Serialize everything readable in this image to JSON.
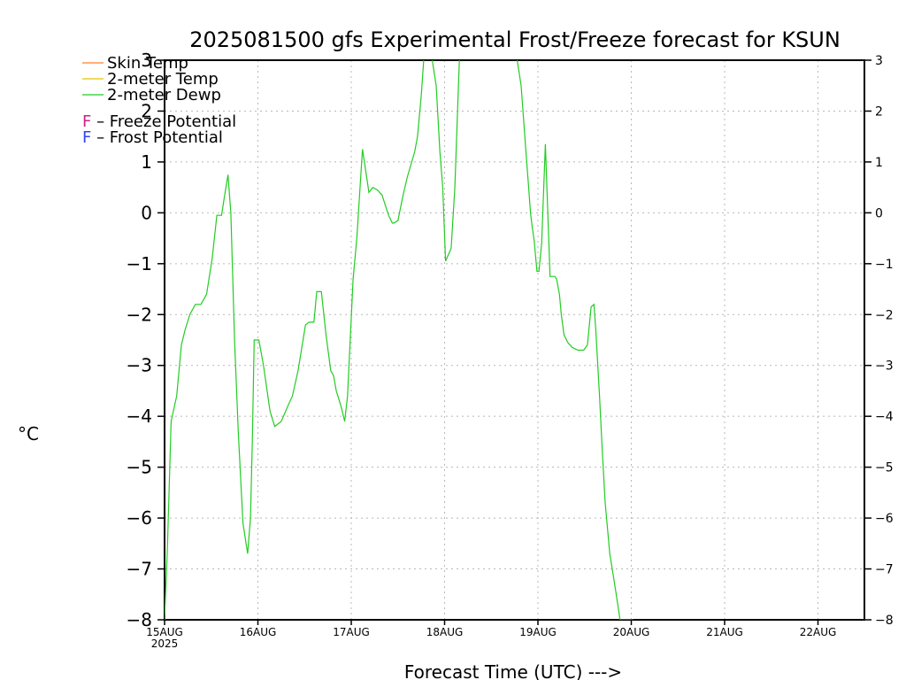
{
  "chart_data": {
    "type": "line",
    "title": "2025081500 gfs Experimental Frost/Freeze forecast for KSUN",
    "xlabel": "Forecast Time (UTC) --->",
    "ylabel": "°C",
    "ylim": [
      -8,
      3
    ],
    "yticks": [
      -8,
      -7,
      -6,
      -5,
      -4,
      -3,
      -2,
      -1,
      0,
      1,
      2,
      3
    ],
    "xticks": [
      "15AUG",
      "16AUG",
      "17AUG",
      "18AUG",
      "19AUG",
      "20AUG",
      "21AUG",
      "22AUG"
    ],
    "xtick_year": "2025",
    "grid": true,
    "legend_position": "top-left",
    "legend": [
      {
        "label": "Skin Temp",
        "color": "#ff7f27"
      },
      {
        "label": "2-meter Temp",
        "color": "#e6c300"
      },
      {
        "label": "2-meter Dewp",
        "color": "#22cc22"
      }
    ],
    "potential_legend": [
      {
        "marker": "F",
        "label": " – Freeze Potential",
        "color": "#cc2288"
      },
      {
        "marker": "F",
        "label": " – Frost Potential",
        "color": "#3344ee"
      }
    ],
    "series": [
      {
        "name": "2-meter Dewp",
        "color": "#22cc22",
        "x": [
          0.0,
          0.03,
          0.07,
          0.13,
          0.18,
          0.22,
          0.27,
          0.33,
          0.39,
          0.45,
          0.51,
          0.56,
          0.61,
          0.64,
          0.68,
          0.71,
          0.75,
          0.79,
          0.84,
          0.89,
          0.92,
          0.94,
          0.96,
          1.01,
          1.06,
          1.13,
          1.18,
          1.25,
          1.32,
          1.37,
          1.43,
          1.51,
          1.55,
          1.57,
          1.6,
          1.63,
          1.68,
          1.73,
          1.78,
          1.81,
          1.84,
          1.89,
          1.93,
          1.96,
          2.02,
          2.06,
          2.12,
          2.19,
          2.23,
          2.28,
          2.33,
          2.4,
          2.44,
          2.46,
          2.5,
          2.55,
          2.6,
          2.68,
          2.71,
          2.75,
          2.78,
          2.81,
          2.86,
          2.91,
          2.95,
          2.98,
          3.01,
          3.07,
          3.11,
          3.16,
          3.22,
          3.27,
          3.32,
          3.38,
          3.45,
          3.51,
          3.57,
          3.64,
          3.69,
          3.73,
          3.75,
          3.76,
          3.77,
          3.82,
          3.86,
          3.88,
          3.9,
          3.92,
          3.94,
          3.96,
          3.97,
          3.99,
          4.01,
          4.04,
          4.08,
          4.13,
          4.16,
          4.18,
          4.2,
          4.22,
          4.23,
          4.25,
          4.28,
          4.32,
          4.37,
          4.43,
          4.49,
          4.53,
          4.57,
          4.6,
          4.62,
          4.66,
          4.69,
          4.72,
          4.77,
          4.83,
          4.88,
          4.91,
          4.96,
          5.0,
          5.02
        ],
        "values": [
          -8.0,
          -6.6,
          -4.1,
          -3.6,
          -2.6,
          -2.3,
          -2.0,
          -1.8,
          -1.8,
          -1.6,
          -0.9,
          -0.05,
          -0.05,
          0.3,
          0.75,
          0.0,
          -2.5,
          -4.3,
          -6.1,
          -6.7,
          -6.0,
          -4.5,
          -2.5,
          -2.5,
          -3.0,
          -3.9,
          -4.2,
          -4.1,
          -3.8,
          -3.6,
          -3.1,
          -2.2,
          -2.15,
          -2.15,
          -2.15,
          -1.55,
          -1.55,
          -2.4,
          -3.1,
          -3.2,
          -3.5,
          -3.8,
          -4.1,
          -3.6,
          -1.3,
          -0.5,
          1.25,
          0.4,
          0.5,
          0.45,
          0.35,
          -0.05,
          -0.2,
          -0.2,
          -0.15,
          0.3,
          0.7,
          1.2,
          1.5,
          2.3,
          3.1,
          3.1,
          3.1,
          2.5,
          1.2,
          0.5,
          -0.95,
          -0.7,
          0.5,
          3.1,
          3.1,
          3.1,
          3.1,
          3.1,
          3.1,
          3.1,
          3.1,
          3.1,
          3.1,
          3.1,
          3.1,
          3.1,
          3.1,
          2.5,
          1.5,
          1.0,
          0.5,
          0.0,
          -0.3,
          -0.55,
          -0.75,
          -1.15,
          -1.15,
          -0.6,
          1.35,
          -1.25,
          -1.25,
          -1.25,
          -1.3,
          -1.5,
          -1.6,
          -2.0,
          -2.4,
          -2.55,
          -2.65,
          -2.7,
          -2.7,
          -2.6,
          -1.85,
          -1.8,
          -2.3,
          -3.6,
          -4.7,
          -5.7,
          -6.7,
          -7.4,
          -8.0,
          -8.0,
          -8.0,
          -8.0,
          -8.0
        ]
      }
    ]
  }
}
